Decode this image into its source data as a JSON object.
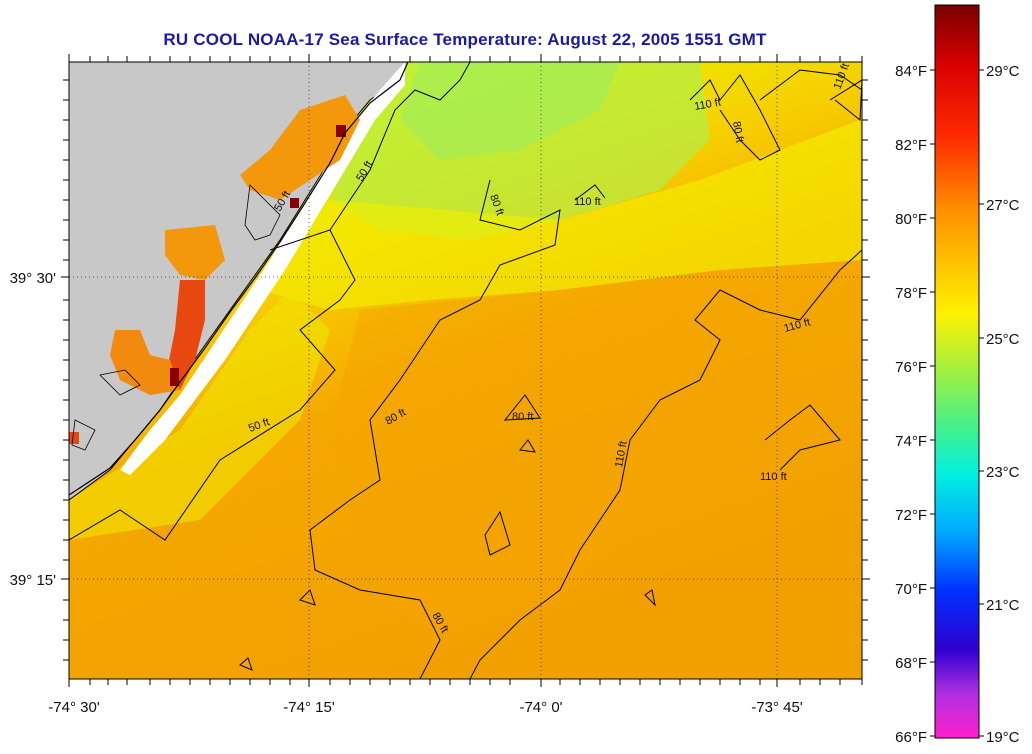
{
  "title": "RU COOL  NOAA-17  Sea Surface Temperature:  August 22, 2005 1551 GMT",
  "lon_labels": [
    "-74° 30'",
    "-74° 15'",
    "-74° 0'",
    "-73° 45'"
  ],
  "lat_labels": [
    "39° 30'",
    "39° 15'"
  ],
  "contour_labels": [
    "50 ft",
    "50 ft",
    "50 ft",
    "80 ft",
    "80 ft",
    "80 ft",
    "80 ft",
    "80 ft",
    "110 ft",
    "110 ft",
    "110 ft",
    "110 ft",
    "110 ft",
    "110 ft"
  ],
  "colorbar": {
    "fahrenheit": [
      "84°F",
      "82°F",
      "80°F",
      "78°F",
      "76°F",
      "74°F",
      "72°F",
      "70°F",
      "68°F",
      "66°F"
    ],
    "celsius": [
      "29°C",
      "27°C",
      "25°C",
      "23°C",
      "21°C",
      "19°C"
    ]
  },
  "colors": {
    "title": "#1a1aa8",
    "land": "#c8c8c8",
    "warm": "#f7a800",
    "cool": "#e6f000"
  }
}
